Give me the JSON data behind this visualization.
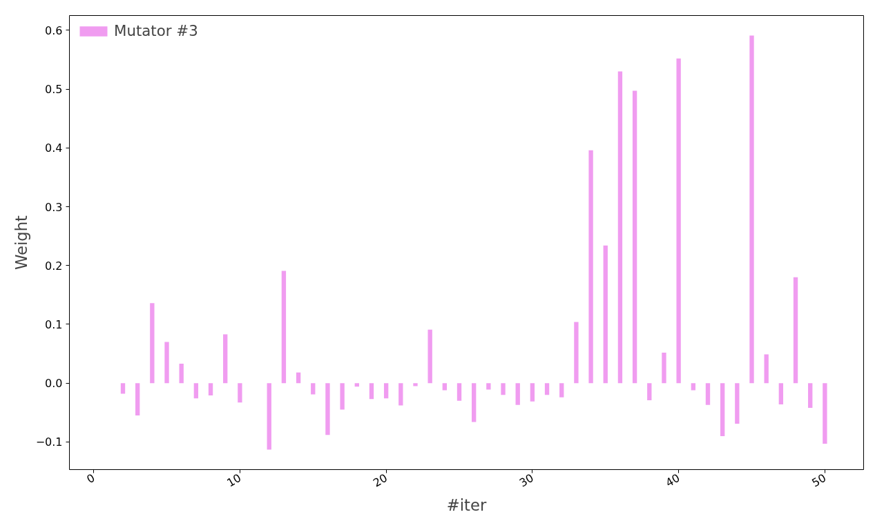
{
  "chart_data": {
    "type": "bar",
    "xlabel": "#iter",
    "ylabel": "Weight",
    "x": [
      2,
      3,
      4,
      5,
      6,
      7,
      8,
      9,
      10,
      12,
      13,
      14,
      15,
      16,
      17,
      18,
      19,
      20,
      21,
      22,
      23,
      24,
      25,
      26,
      27,
      28,
      29,
      30,
      31,
      32,
      33,
      34,
      35,
      36,
      37,
      38,
      39,
      40,
      41,
      42,
      43,
      44,
      45,
      46,
      47,
      48,
      49,
      50
    ],
    "series": [
      {
        "name": "Mutator #3",
        "color": "#f09cf0",
        "values": [
          -0.018,
          -0.055,
          0.136,
          0.07,
          0.033,
          -0.026,
          -0.021,
          0.083,
          -0.033,
          -0.113,
          0.191,
          0.018,
          -0.019,
          -0.088,
          -0.045,
          -0.006,
          -0.027,
          -0.026,
          -0.038,
          -0.005,
          0.091,
          -0.012,
          -0.03,
          -0.066,
          -0.011,
          -0.02,
          -0.037,
          -0.031,
          -0.02,
          -0.024,
          0.104,
          0.396,
          0.234,
          0.53,
          0.497,
          -0.029,
          0.052,
          0.552,
          -0.012,
          -0.037,
          -0.09,
          -0.069,
          0.591,
          0.049,
          -0.036,
          0.18,
          -0.042,
          -0.103
        ]
      }
    ],
    "xlim": [
      -1.66,
      52.65
    ],
    "ylim": [
      -0.147,
      0.625
    ],
    "xticks": [
      0,
      10,
      20,
      30,
      40,
      50
    ],
    "yticks": [
      {
        "value": -0.1,
        "label": "−0.1"
      },
      {
        "value": 0,
        "label": "0.0"
      },
      {
        "value": 0.1,
        "label": "0.1"
      },
      {
        "value": 0.2,
        "label": "0.2"
      },
      {
        "value": 0.3,
        "label": "0.3"
      },
      {
        "value": 0.4,
        "label": "0.4"
      },
      {
        "value": 0.5,
        "label": "0.5"
      },
      {
        "value": 0.6,
        "label": "0.6"
      }
    ],
    "grid": false,
    "legend": "top left"
  }
}
